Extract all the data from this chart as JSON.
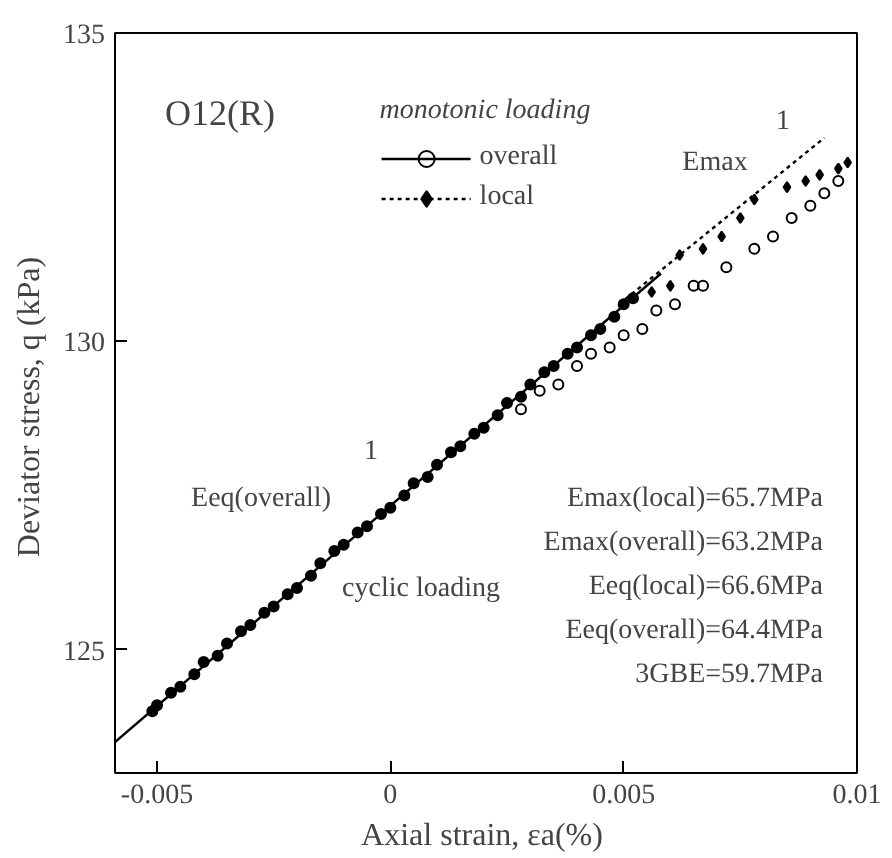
{
  "chart_data": {
    "type": "scatter",
    "title": "O12(R)",
    "xlabel": "Axial strain,  εa(%)",
    "ylabel": "Deviator stress,  q (kPa)",
    "legend_title": "monotonic loading",
    "xlim": [
      -0.0059,
      0.01
    ],
    "ylim": [
      123,
      135
    ],
    "xticks": [
      -0.005,
      0,
      0.005,
      0.01
    ],
    "yticks": [
      125,
      130,
      135
    ],
    "grid": false,
    "legend": "top",
    "series": [
      {
        "name": "overall",
        "type": "line",
        "line_style": "solid",
        "color": "#000000",
        "x": [
          -0.0059,
          0.0058
        ],
        "values": [
          123.5,
          131.1
        ]
      },
      {
        "name": "local",
        "type": "line",
        "line_style": "dotted",
        "color": "#000000",
        "x": [
          0.0049,
          0.0093
        ],
        "values": [
          130.6,
          133.3
        ]
      },
      {
        "type": "scatter",
        "marker": "circle",
        "color": "#000000",
        "x": [
          0.0028,
          0.0032,
          0.0036,
          0.004,
          0.0043,
          0.0047,
          0.005,
          0.0054,
          0.0057,
          0.0061,
          0.0065,
          0.0067,
          0.0072,
          0.0078,
          0.0082,
          0.0086,
          0.009,
          0.0093,
          0.0096
        ],
        "values": [
          128.9,
          129.2,
          129.3,
          129.6,
          129.8,
          129.9,
          130.1,
          130.2,
          130.5,
          130.6,
          130.9,
          130.9,
          131.2,
          131.5,
          131.7,
          132.0,
          132.2,
          132.4,
          132.6
        ]
      },
      {
        "type": "scatter",
        "marker": "diamond",
        "color": "#000000",
        "x": [
          0.0056,
          0.006,
          0.0062,
          0.0067,
          0.0071,
          0.0075,
          0.0078,
          0.0085,
          0.0089,
          0.0092,
          0.0096,
          0.0098
        ],
        "values": [
          130.8,
          130.9,
          131.4,
          131.5,
          131.7,
          132.0,
          132.3,
          132.5,
          132.6,
          132.7,
          132.8,
          132.9
        ]
      },
      {
        "marker": "circle",
        "color": "#000000",
        "x": [
          -0.0051,
          -0.005,
          -0.0047,
          -0.0045,
          -0.0042,
          -0.004,
          -0.0037,
          -0.0035,
          -0.0032,
          -0.003,
          -0.0027,
          -0.0025,
          -0.0022,
          -0.002,
          -0.0017,
          -0.0015,
          -0.0012,
          -0.001,
          -0.0007,
          -0.0005,
          -0.0002,
          0,
          0.0003,
          0.0005,
          0.0008,
          0.001,
          0.0013,
          0.0015,
          0.0018,
          0.002,
          0.0023,
          0.0025,
          0.0028,
          0.003,
          0.0033,
          0.0035,
          0.0038,
          0.004,
          0.0043,
          0.0045,
          0.0048,
          0.005,
          0.0052
        ],
        "values": [
          124.0,
          124.1,
          124.3,
          124.4,
          124.6,
          124.8,
          124.9,
          125.1,
          125.3,
          125.4,
          125.6,
          125.7,
          125.9,
          126.0,
          126.2,
          126.4,
          126.6,
          126.7,
          126.9,
          127.0,
          127.2,
          127.3,
          127.5,
          127.7,
          127.8,
          128.0,
          128.2,
          128.3,
          128.5,
          128.6,
          128.8,
          129.0,
          129.1,
          129.3,
          129.5,
          129.6,
          129.8,
          129.9,
          130.1,
          130.2,
          130.4,
          130.6,
          130.7
        ]
      }
    ],
    "annotations": [
      "cyclic loading",
      "Eeq(overall)",
      "1",
      "Emax",
      "1",
      "Emax(local)=65.7MPa",
      "Emax(overall)=63.2MPa",
      "Eeq(local)=66.6MPa",
      "Eeq(overall)=64.4MPa",
      "3GBE=59.7MPa"
    ]
  }
}
